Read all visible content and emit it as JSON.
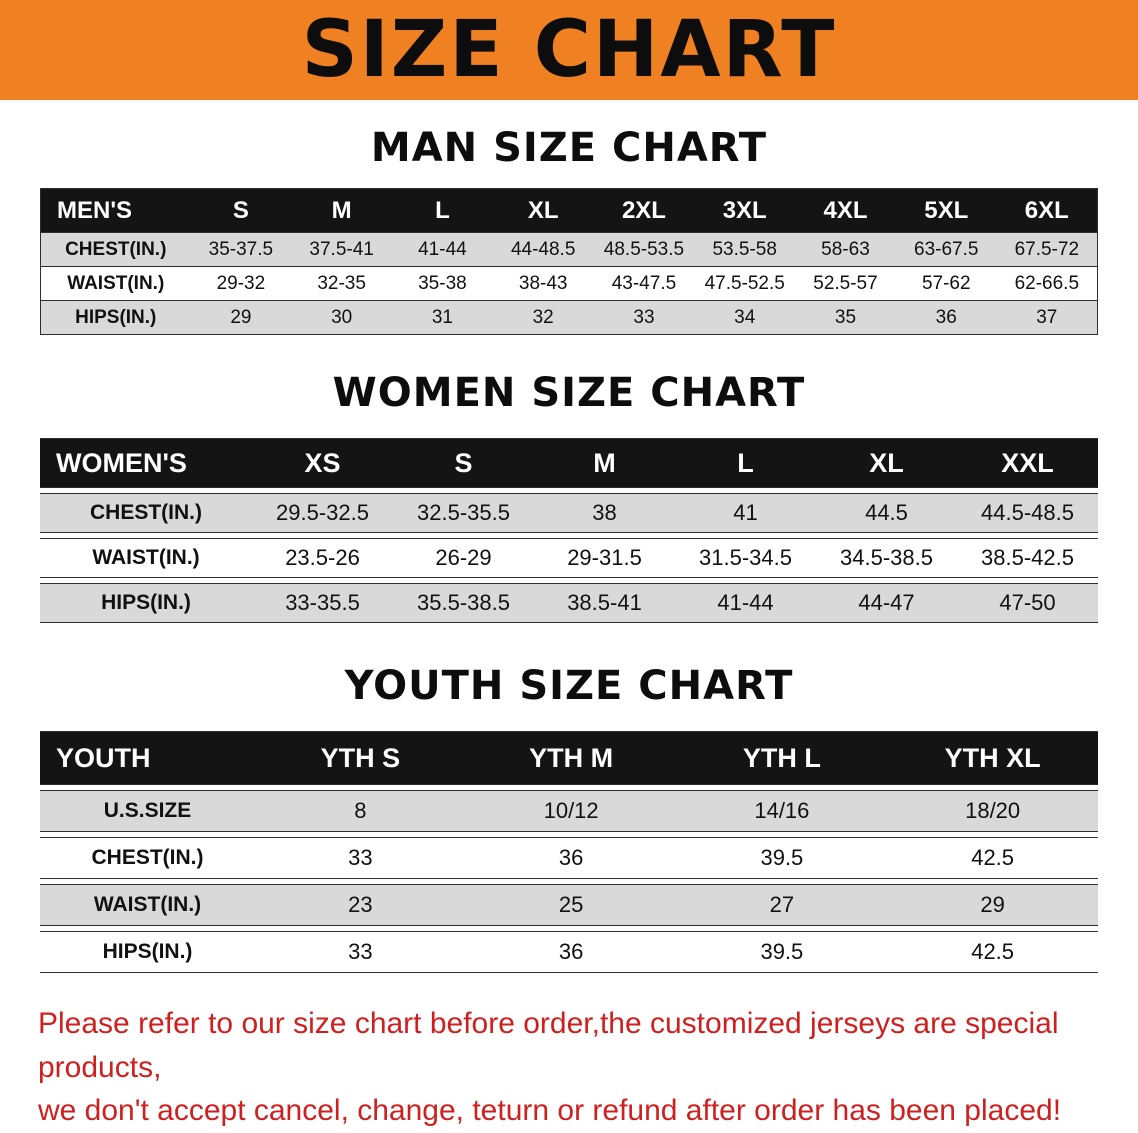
{
  "banner": {
    "title": "SIZE CHART"
  },
  "colors": {
    "banner_bg": "#f08122",
    "table_header_bg": "#141414",
    "row_shade": "#d9d9d9",
    "disclaimer_red": "#cf1f1f"
  },
  "sections": [
    {
      "heading": "MAN SIZE CHART",
      "table": {
        "header": [
          "MEN'S",
          "S",
          "M",
          "L",
          "XL",
          "2XL",
          "3XL",
          "4XL",
          "5XL",
          "6XL"
        ],
        "rows": [
          [
            "CHEST(IN.)",
            "35-37.5",
            "37.5-41",
            "41-44",
            "44-48.5",
            "48.5-53.5",
            "53.5-58",
            "58-63",
            "63-67.5",
            "67.5-72"
          ],
          [
            "WAIST(IN.)",
            "29-32",
            "32-35",
            "35-38",
            "38-43",
            "43-47.5",
            "47.5-52.5",
            "52.5-57",
            "57-62",
            "62-66.5"
          ],
          [
            "HIPS(IN.)",
            "29",
            "30",
            "31",
            "32",
            "33",
            "34",
            "35",
            "36",
            "37"
          ]
        ]
      }
    },
    {
      "heading": "WOMEN SIZE CHART",
      "table": {
        "header": [
          "WOMEN'S",
          "XS",
          "S",
          "M",
          "L",
          "XL",
          "XXL"
        ],
        "rows": [
          [
            "CHEST(IN.)",
            "29.5-32.5",
            "32.5-35.5",
            "38",
            "41",
            "44.5",
            "44.5-48.5"
          ],
          [
            "WAIST(IN.)",
            "23.5-26",
            "26-29",
            "29-31.5",
            "31.5-34.5",
            "34.5-38.5",
            "38.5-42.5"
          ],
          [
            "HIPS(IN.)",
            "33-35.5",
            "35.5-38.5",
            "38.5-41",
            "41-44",
            "44-47",
            "47-50"
          ]
        ]
      }
    },
    {
      "heading": "YOUTH SIZE CHART",
      "table": {
        "header": [
          "YOUTH",
          "YTH S",
          "YTH M",
          "YTH L",
          "YTH XL"
        ],
        "rows": [
          [
            "U.S.SIZE",
            "8",
            "10/12",
            "14/16",
            "18/20"
          ],
          [
            "CHEST(IN.)",
            "33",
            "36",
            "39.5",
            "42.5"
          ],
          [
            "WAIST(IN.)",
            "23",
            "25",
            "27",
            "29"
          ],
          [
            "HIPS(IN.)",
            "33",
            "36",
            "39.5",
            "42.5"
          ]
        ]
      }
    }
  ],
  "disclaimer": {
    "line1": "Please refer to our size chart before order,the customized jerseys are special products,",
    "line2": "we don't accept cancel, change, teturn or refund after order has been placed!"
  }
}
